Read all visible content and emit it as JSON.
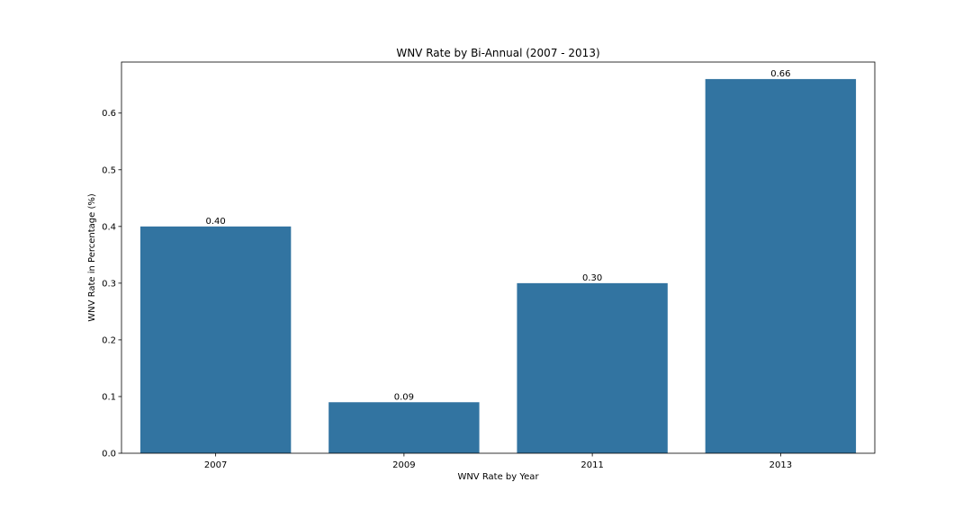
{
  "chart_data": {
    "type": "bar",
    "title": "WNV Rate by Bi-Annual (2007 - 2013)",
    "xlabel": "WNV Rate by Year",
    "ylabel": "WNV Rate in Percentage (%)",
    "categories": [
      "2007",
      "2009",
      "2011",
      "2013"
    ],
    "values": [
      0.4,
      0.09,
      0.3,
      0.66
    ],
    "data_labels": [
      "0.40",
      "0.09",
      "0.30",
      "0.66"
    ],
    "ylim": [
      0,
      0.69
    ],
    "yticks": [
      0.0,
      0.1,
      0.2,
      0.3,
      0.4,
      0.5,
      0.6
    ],
    "ytick_labels": [
      "0.0",
      "0.1",
      "0.2",
      "0.3",
      "0.4",
      "0.5",
      "0.6"
    ],
    "grid": false,
    "legend": "none",
    "bar_color": "#3274a1"
  }
}
